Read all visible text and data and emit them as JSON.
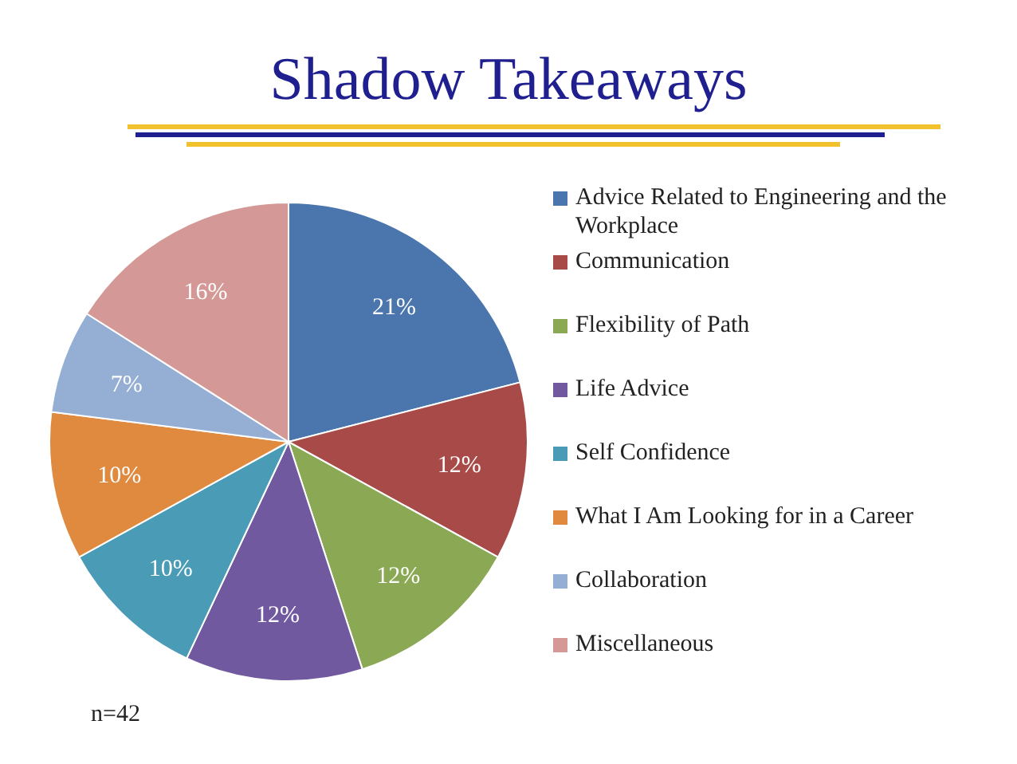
{
  "chart_data": {
    "type": "pie",
    "title": "Shadow Takeaways",
    "categories": [
      "Advice Related to Engineering and the Workplace",
      "Communication",
      "Flexibility of Path",
      "Life Advice",
      "Self Confidence",
      "What I Am Looking for in a Career",
      "Collaboration",
      "Miscellaneous"
    ],
    "values": [
      21,
      12,
      12,
      12,
      10,
      10,
      7,
      16
    ],
    "colors": [
      "#4a76ad",
      "#a84b48",
      "#8ba955",
      "#7159a0",
      "#4a9bb5",
      "#df8a3f",
      "#95aed4",
      "#d49896"
    ],
    "value_labels": [
      "21%",
      "12%",
      "12%",
      "12%",
      "10%",
      "10%",
      "7%",
      "16%"
    ],
    "legend": "right",
    "annotations": [
      "n=42"
    ]
  }
}
